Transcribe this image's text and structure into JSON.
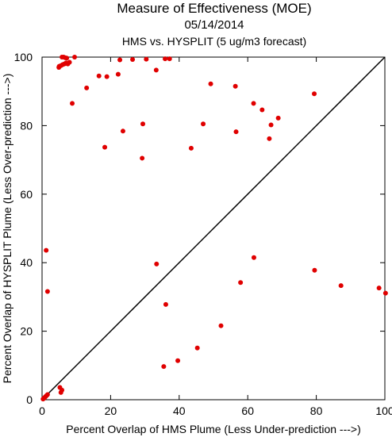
{
  "chart_data": {
    "type": "scatter",
    "title": "Measure of Effectiveness (MOE)",
    "subtitle": "05/14/2014",
    "subtitle2": "HMS vs. HYSPLIT  (5 ug/m3 forecast)",
    "xlabel": "Percent Overlap of HMS Plume (Less Under-prediction --->)",
    "ylabel": "Percent Overlap of HYSPLIT Plume (Less Over-prediction --->)",
    "xlim": [
      0,
      100
    ],
    "ylim": [
      0,
      100
    ],
    "xticks": [
      0,
      20,
      40,
      60,
      80,
      100
    ],
    "yticks": [
      0,
      20,
      40,
      60,
      80,
      100
    ],
    "grid": false,
    "reference_line": {
      "x": [
        0,
        100
      ],
      "y": [
        0,
        100
      ],
      "color": "#000000"
    },
    "marker_color": "#e00000",
    "series": [
      {
        "x": [
          5.8,
          6.3,
          6.8,
          7.2,
          9.5,
          5.5,
          6,
          6.5,
          7,
          7.5,
          8,
          5,
          4.9,
          22.7,
          26.4,
          30.4,
          35.9,
          37.2,
          16.6,
          18.9,
          22.2,
          33.3,
          13,
          8.8,
          49.2,
          56.4,
          79.4,
          61.7,
          64.2,
          23.6,
          29.4,
          47,
          56.6,
          68.9,
          66.8,
          66.3,
          18.3,
          43.5,
          29.2,
          1.2,
          1.6,
          33.4,
          61.8,
          57.9,
          79.5,
          87.2,
          98.3,
          100.2,
          36.1,
          52.2,
          45.3,
          39.6,
          35.5,
          5.2,
          5.8,
          5.5,
          1.6,
          1.3,
          1.0,
          0.8,
          0.5,
          0.3
        ],
        "y": [
          100,
          100,
          99.8,
          99.7,
          100,
          97.5,
          97.8,
          98,
          98.3,
          98,
          98.5,
          97.3,
          97,
          99.2,
          99.3,
          99.4,
          99.5,
          99.5,
          94.5,
          94.3,
          95,
          96.2,
          91,
          86.5,
          92.2,
          91.5,
          89.3,
          86.5,
          84.6,
          78.4,
          80.5,
          80.5,
          78.2,
          82.2,
          80.2,
          76.2,
          73.7,
          73.4,
          70.5,
          43.6,
          31.6,
          39.6,
          41.5,
          34.2,
          37.8,
          33.3,
          32.6,
          31.1,
          27.8,
          21.6,
          15.1,
          11.4,
          9.7,
          3.6,
          2.8,
          2.1,
          1.5,
          1.2,
          0.9,
          0.7,
          0.4,
          0.2
        ]
      }
    ]
  }
}
